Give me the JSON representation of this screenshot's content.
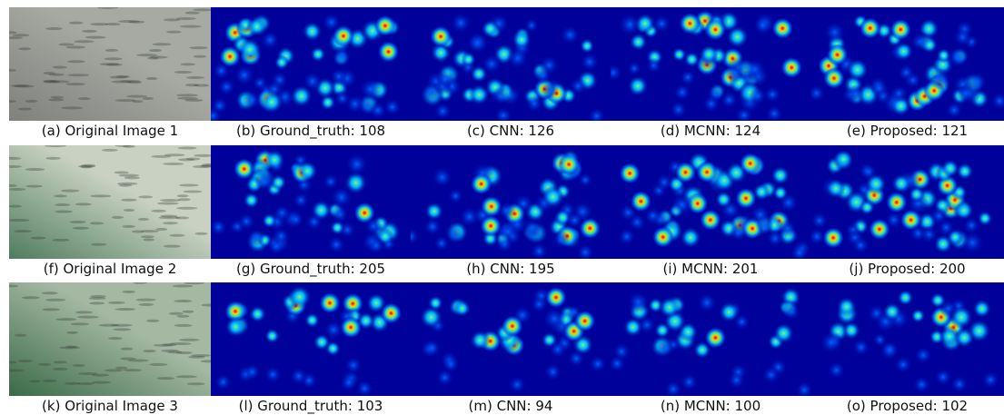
{
  "rows": [
    {
      "panels": [
        {
          "caption": "(a) Original Image 1"
        },
        {
          "caption": "(b) Ground_truth: 108"
        },
        {
          "caption": "(c) CNN: 126"
        },
        {
          "caption": "(d) MCNN: 124"
        },
        {
          "caption": "(e) Proposed: 121"
        }
      ]
    },
    {
      "panels": [
        {
          "caption": "(f) Original Image 2"
        },
        {
          "caption": "(g) Ground_truth: 205"
        },
        {
          "caption": "(h) CNN: 195"
        },
        {
          "caption": "(i) MCNN: 201"
        },
        {
          "caption": "(j) Proposed: 200"
        }
      ]
    },
    {
      "panels": [
        {
          "caption": "(k) Original Image 3"
        },
        {
          "caption": "(l) Ground_truth: 103"
        },
        {
          "caption": "(m) CNN: 94"
        },
        {
          "caption": "(n) MCNN: 100"
        },
        {
          "caption": "(o) Proposed: 102"
        }
      ]
    }
  ]
}
